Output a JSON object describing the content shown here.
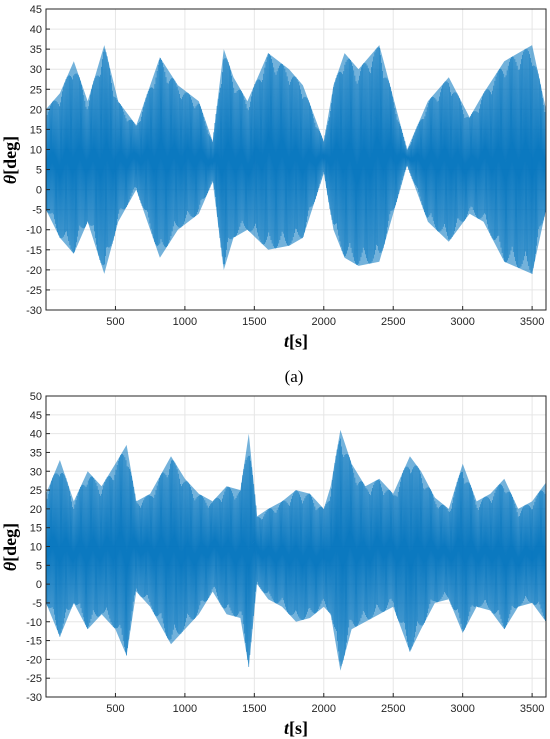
{
  "chart_data": [
    {
      "type": "area",
      "panel_label": "(a)",
      "title": "",
      "xlabel": "t[s]",
      "ylabel": "θ[deg]",
      "xlabel_parts": {
        "var": "t",
        "unit": "[s]"
      },
      "ylabel_parts": {
        "var": "θ",
        "unit": "[deg]"
      },
      "xlim": [
        0,
        3600
      ],
      "ylim": [
        -30,
        45
      ],
      "xticks": [
        500,
        1000,
        1500,
        2000,
        2500,
        3000,
        3500
      ],
      "yticks": [
        -30,
        -25,
        -20,
        -15,
        -10,
        -5,
        0,
        5,
        10,
        15,
        20,
        25,
        30,
        35,
        40,
        45
      ],
      "grid": true,
      "color": "#0072BD",
      "series": [
        {
          "description": "oscillation envelope (upper and lower bound of the dense signal)",
          "x": [
            0,
            100,
            200,
            300,
            420,
            520,
            650,
            820,
            950,
            1100,
            1200,
            1280,
            1350,
            1450,
            1600,
            1750,
            1850,
            2000,
            2070,
            2150,
            2250,
            2400,
            2600,
            2750,
            2900,
            3050,
            3150,
            3300,
            3500,
            3600
          ],
          "upper": [
            20,
            24,
            32,
            22,
            36,
            22,
            16,
            33,
            26,
            22,
            12,
            35,
            28,
            22,
            34,
            30,
            26,
            12,
            26,
            34,
            30,
            36,
            10,
            22,
            28,
            18,
            24,
            32,
            36,
            20
          ],
          "lower": [
            -5,
            -12,
            -16,
            -8,
            -21,
            -8,
            0,
            -17,
            -10,
            -6,
            2,
            -20,
            -12,
            -10,
            -15,
            -14,
            -12,
            4,
            -10,
            -17,
            -19,
            -18,
            6,
            -8,
            -13,
            -6,
            -8,
            -18,
            -21,
            -5
          ]
        }
      ]
    },
    {
      "type": "area",
      "panel_label": "",
      "title": "",
      "xlabel": "t[s]",
      "ylabel": "θ[deg]",
      "xlabel_parts": {
        "var": "t",
        "unit": "[s]"
      },
      "ylabel_parts": {
        "var": "θ",
        "unit": "[deg]"
      },
      "xlim": [
        0,
        3600
      ],
      "ylim": [
        -30,
        50
      ],
      "xticks": [
        500,
        1000,
        1500,
        2000,
        2500,
        3000,
        3500
      ],
      "yticks": [
        -30,
        -25,
        -20,
        -15,
        -10,
        -5,
        0,
        5,
        10,
        15,
        20,
        25,
        30,
        35,
        40,
        45,
        50
      ],
      "grid": true,
      "color": "#0072BD",
      "series": [
        {
          "description": "oscillation envelope (upper and lower bound of the dense signal)",
          "x": [
            0,
            100,
            200,
            300,
            400,
            500,
            580,
            650,
            750,
            900,
            1000,
            1100,
            1200,
            1300,
            1400,
            1460,
            1520,
            1600,
            1700,
            1800,
            1900,
            2000,
            2050,
            2120,
            2200,
            2300,
            2400,
            2500,
            2620,
            2700,
            2800,
            2900,
            3000,
            3100,
            3200,
            3300,
            3400,
            3500,
            3600
          ],
          "upper": [
            24,
            33,
            22,
            30,
            26,
            32,
            37,
            22,
            24,
            34,
            28,
            24,
            22,
            26,
            25,
            40,
            18,
            20,
            22,
            25,
            24,
            20,
            26,
            41,
            32,
            26,
            28,
            24,
            34,
            30,
            23,
            20,
            32,
            22,
            24,
            28,
            20,
            22,
            27
          ],
          "lower": [
            -5,
            -14,
            -5,
            -12,
            -8,
            -12,
            -19,
            -2,
            -6,
            -16,
            -12,
            -8,
            -2,
            -8,
            -9,
            -22,
            0,
            -4,
            -6,
            -10,
            -9,
            -6,
            -8,
            -23,
            -12,
            -10,
            -8,
            -6,
            -18,
            -12,
            -5,
            -4,
            -13,
            -6,
            -7,
            -12,
            -6,
            -5,
            -10
          ]
        }
      ]
    }
  ]
}
